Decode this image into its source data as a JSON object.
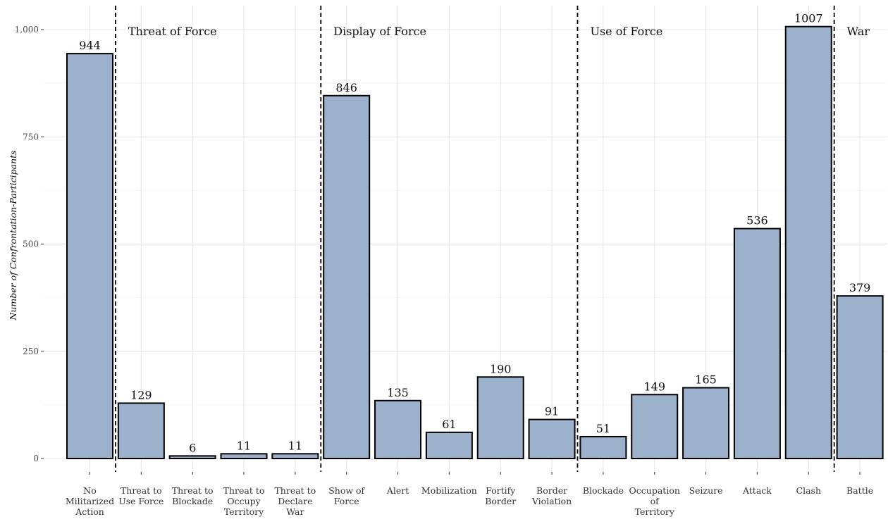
{
  "chart_data": {
    "type": "bar",
    "ylabel": "Number of Confrontation-Participants",
    "xlabel": "",
    "ylim": [
      0,
      1060
    ],
    "yticks": [
      0,
      250,
      500,
      750,
      1000
    ],
    "ytick_labels": [
      "0",
      "250",
      "500",
      "750",
      "1,000"
    ],
    "grid": true,
    "categories": [
      {
        "label": [
          "No",
          "Militarized",
          "Action"
        ],
        "value": 944
      },
      {
        "label": [
          "Threat to",
          "Use Force"
        ],
        "value": 129
      },
      {
        "label": [
          "Threat to",
          "Blockade"
        ],
        "value": 6
      },
      {
        "label": [
          "Threat to",
          "Occupy",
          "Territory"
        ],
        "value": 11
      },
      {
        "label": [
          "Threat to",
          "Declare",
          "War"
        ],
        "value": 11
      },
      {
        "label": [
          "Show of",
          "Force"
        ],
        "value": 846
      },
      {
        "label": [
          "Alert"
        ],
        "value": 135
      },
      {
        "label": [
          "Mobilization"
        ],
        "value": 61
      },
      {
        "label": [
          "Fortify",
          "Border"
        ],
        "value": 190
      },
      {
        "label": [
          "Border",
          "Violation"
        ],
        "value": 91
      },
      {
        "label": [
          "Blockade"
        ],
        "value": 51
      },
      {
        "label": [
          "Occupation",
          "of",
          "Territory"
        ],
        "value": 149
      },
      {
        "label": [
          "Seizure"
        ],
        "value": 165
      },
      {
        "label": [
          "Attack"
        ],
        "value": 536
      },
      {
        "label": [
          "Clash"
        ],
        "value": 1007
      },
      {
        "label": [
          "Battle"
        ],
        "value": 379
      }
    ],
    "value_labels": [
      "944",
      "129",
      "6",
      "11",
      "11",
      "846",
      "135",
      "61",
      "190",
      "91",
      "51",
      "149",
      "165",
      "536",
      "1007",
      "379"
    ],
    "separators_after_index": [
      0,
      4,
      9,
      14
    ],
    "groups": [
      {
        "label": "Threat of Force",
        "start_index": 1
      },
      {
        "label": "Display of Force",
        "start_index": 5
      },
      {
        "label": "Use of Force",
        "start_index": 10
      },
      {
        "label": "War",
        "start_index": 15
      }
    ]
  }
}
